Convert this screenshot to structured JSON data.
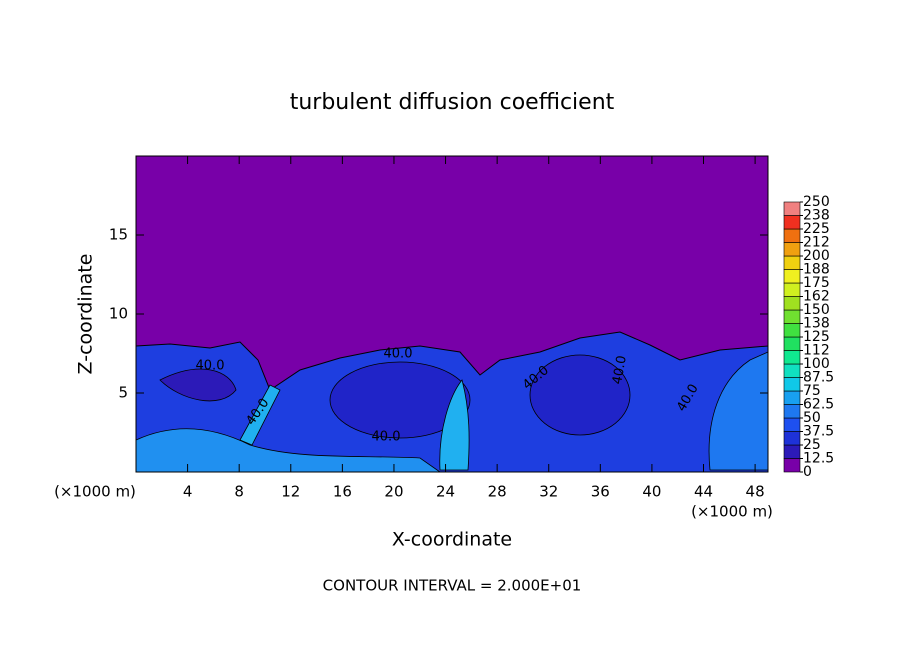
{
  "chart_data": {
    "type": "contour",
    "title": "turbulent diffusion coefficient",
    "xlabel": "X-coordinate",
    "ylabel": "Z-coordinate",
    "x_unit": "(×1000 m)",
    "x_unit_right": "(×1000 m)",
    "footnote": "CONTOUR INTERVAL = 2.000E+01",
    "xlim": [
      0,
      49
    ],
    "xticks": [
      4,
      8,
      12,
      16,
      20,
      24,
      28,
      32,
      36,
      40,
      44,
      48
    ],
    "ylim": [
      0,
      20
    ],
    "yticks": [
      5,
      10,
      15
    ],
    "contour_labels": [
      "40.0",
      "40.0",
      "40.0",
      "40.0",
      "40.0",
      "40.0",
      "40.0"
    ],
    "colorbar": {
      "ticks": [
        0,
        12.5,
        25,
        37.5,
        50,
        62.5,
        75,
        87.5,
        100,
        112,
        125,
        138,
        150,
        162,
        175,
        188,
        200,
        212,
        225,
        238,
        250
      ],
      "colors": [
        "#7800a8",
        "#2c1ab8",
        "#1e32d8",
        "#1e50f0",
        "#1e78f0",
        "#18a0f0",
        "#10c8e8",
        "#10e0c0",
        "#10e890",
        "#20e060",
        "#40e040",
        "#70e030",
        "#a0e020",
        "#d0f020",
        "#f0f020",
        "#f0d010",
        "#f0a010",
        "#f07010",
        "#f03020",
        "#f08080"
      ]
    }
  }
}
